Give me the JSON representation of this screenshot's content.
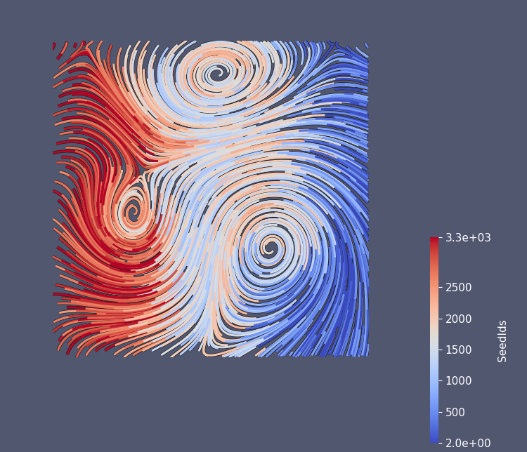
{
  "chart_data": {
    "type": "streamlines",
    "tick_labels": false,
    "colorbar": {
      "label": "SeedIds",
      "range": [
        2,
        3300
      ],
      "ticks": [
        {
          "value": 2,
          "label": "2.0e+00"
        },
        500,
        1000,
        1500,
        2000,
        2500,
        {
          "value": 3300,
          "label": "3.3e+03"
        }
      ]
    }
  }
}
